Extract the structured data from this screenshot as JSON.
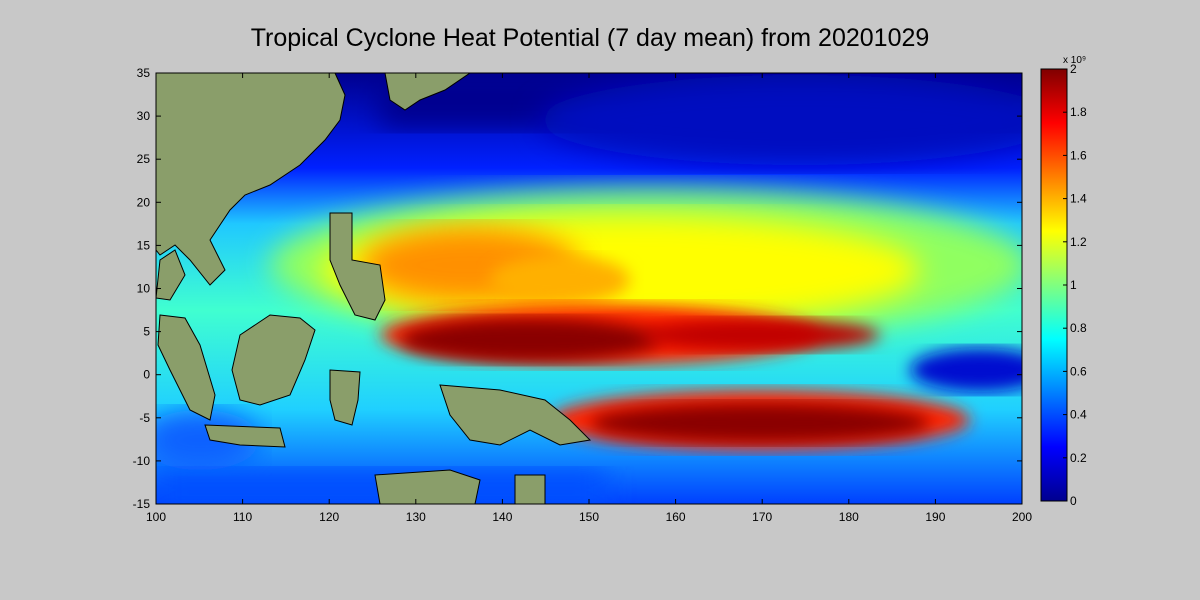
{
  "title": "Tropical Cyclone Heat Potential (7 day mean) from 20201029",
  "x_axis": {
    "min": 100,
    "max": 200,
    "ticks": [
      "100",
      "110",
      "120",
      "130",
      "140",
      "150",
      "160",
      "170",
      "180",
      "190",
      "200"
    ]
  },
  "y_axis": {
    "min": -15,
    "max": 35,
    "ticks": [
      "35",
      "30",
      "25",
      "20",
      "15",
      "10",
      "5",
      "0",
      "-5",
      "-10",
      "-15"
    ]
  },
  "colorbar": {
    "exponent_label": "x 10⁹",
    "min": 0,
    "max": 2,
    "ticks": [
      "2",
      "1.8",
      "1.6",
      "1.4",
      "1.2",
      "1",
      "0.8",
      "0.6",
      "0.4",
      "0.2",
      "0"
    ],
    "colormap": "jet"
  },
  "colors": {
    "land": "#8a9e6a",
    "background": "#c8c8c8",
    "ocean_low": "#00008f",
    "ocean_high": "#800000"
  }
}
